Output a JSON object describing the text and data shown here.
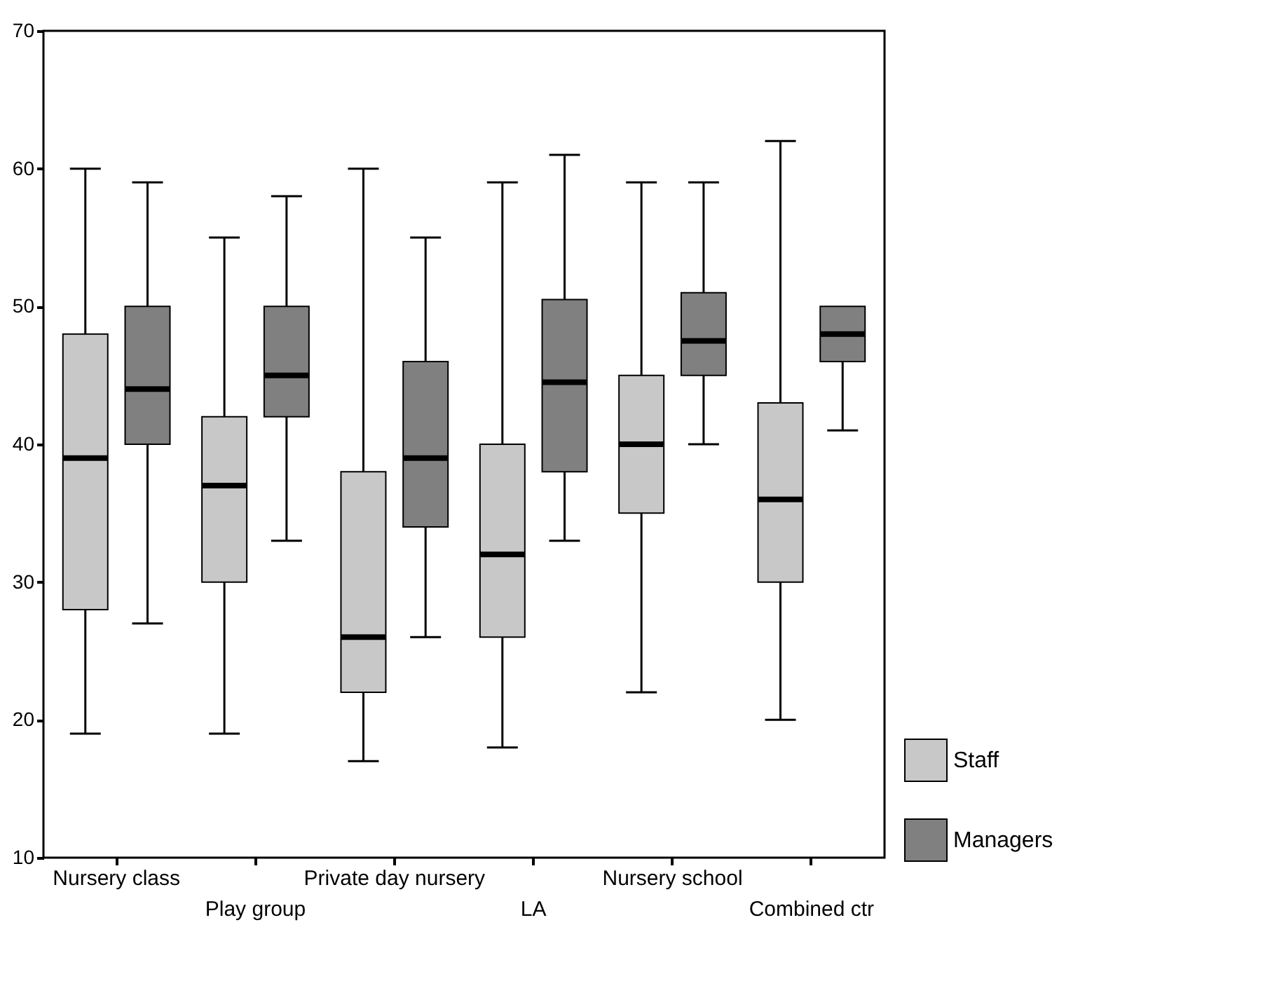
{
  "chart_data": {
    "type": "box",
    "categories": [
      "Nursery class",
      "Play group",
      "Private day nursery",
      "LA",
      "Nursery school",
      "Combined ctr"
    ],
    "series": [
      {
        "name": "Staff",
        "color": "#c8c8c8",
        "boxes": [
          {
            "low": 19,
            "q1": 28,
            "median": 39,
            "q3": 48,
            "high": 60
          },
          {
            "low": 19,
            "q1": 30,
            "median": 37,
            "q3": 42,
            "high": 55
          },
          {
            "low": 17,
            "q1": 22,
            "median": 26,
            "q3": 38,
            "high": 60
          },
          {
            "low": 18,
            "q1": 26,
            "median": 32,
            "q3": 40,
            "high": 59
          },
          {
            "low": 22,
            "q1": 35,
            "median": 40,
            "q3": 45,
            "high": 59
          },
          {
            "low": 20,
            "q1": 30,
            "median": 36,
            "q3": 43,
            "high": 62
          }
        ]
      },
      {
        "name": "Managers",
        "color": "#808080",
        "boxes": [
          {
            "low": 27,
            "q1": 40,
            "median": 44,
            "q3": 50,
            "high": 59
          },
          {
            "low": 33,
            "q1": 42,
            "median": 45,
            "q3": 50,
            "high": 58
          },
          {
            "low": 26,
            "q1": 34,
            "median": 39,
            "q3": 46,
            "high": 55
          },
          {
            "low": 33,
            "q1": 38,
            "median": 44.5,
            "q3": 50.5,
            "high": 61
          },
          {
            "low": 40,
            "q1": 45,
            "median": 47.5,
            "q3": 51,
            "high": 59
          },
          {
            "low": 41,
            "q1": 46,
            "median": 48,
            "q3": 50,
            "high": 50
          }
        ]
      }
    ],
    "ylim": [
      10,
      70
    ],
    "yticks": [
      10,
      20,
      30,
      40,
      50,
      60,
      70
    ],
    "grid": false,
    "legend": "bottom right"
  }
}
